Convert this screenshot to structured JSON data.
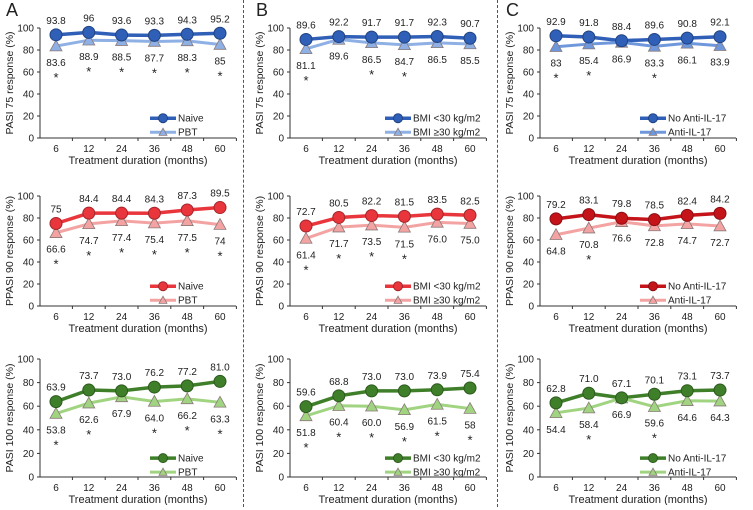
{
  "chart_data": [
    {
      "type": "line",
      "panel_letter": "A",
      "ylabel": "PASI 75 response (%)",
      "xlabel": "Treatment duration (months)",
      "categories": [
        "6",
        "12",
        "24",
        "36",
        "48",
        "60"
      ],
      "ylim": [
        0,
        100
      ],
      "yticks": [
        0,
        20,
        40,
        60,
        80,
        100
      ],
      "legend": "center-right",
      "series": [
        {
          "name": "Naive",
          "marker": "circle",
          "color": "#2f5fb7",
          "values": [
            93.8,
            96,
            93.6,
            93.3,
            94.3,
            95.2
          ],
          "labels": [
            "93.8",
            "96",
            "93.6",
            "93.3",
            "94.3",
            "95.2"
          ]
        },
        {
          "name": "PBT",
          "marker": "triangle",
          "color": "#8eb0e4",
          "values": [
            83.6,
            88.9,
            88.5,
            87.7,
            88.3,
            85
          ],
          "labels": [
            "83.6",
            "88.9",
            "88.5",
            "87.7",
            "88.3",
            "85"
          ]
        }
      ],
      "significant": [
        true,
        true,
        true,
        true,
        true,
        true
      ]
    },
    {
      "type": "line",
      "panel_letter": "B",
      "ylabel": "PASI 75 response (%)",
      "xlabel": "Treatment duration (months)",
      "categories": [
        "6",
        "12",
        "24",
        "36",
        "48",
        "60"
      ],
      "ylim": [
        0,
        100
      ],
      "yticks": [
        0,
        20,
        40,
        60,
        80,
        100
      ],
      "legend": "center-right",
      "series": [
        {
          "name": "BMI <30 kg/m2",
          "marker": "circle",
          "color": "#2f5fb7",
          "values": [
            89.6,
            92.2,
            91.7,
            91.7,
            92.3,
            90.7
          ],
          "labels": [
            "89.6",
            "92.2",
            "91.7",
            "91.7",
            "92.3",
            "90.7"
          ]
        },
        {
          "name": "BMI ≥30 kg/m2",
          "marker": "triangle",
          "color": "#8eb0e4",
          "values": [
            81.1,
            89.6,
            86.5,
            84.7,
            86.5,
            85.5
          ],
          "labels": [
            "81.1",
            "89.6",
            "86.5",
            "84.7",
            "86.5",
            "85.5"
          ]
        }
      ],
      "significant": [
        true,
        false,
        true,
        true,
        false,
        false
      ]
    },
    {
      "type": "line",
      "panel_letter": "C",
      "ylabel": "PASI 75 response (%)",
      "xlabel": "Treatment duration (months)",
      "categories": [
        "6",
        "12",
        "24",
        "36",
        "48",
        "60"
      ],
      "ylim": [
        0,
        100
      ],
      "yticks": [
        0,
        20,
        40,
        60,
        80,
        100
      ],
      "legend": "center-right",
      "series": [
        {
          "name": "No Anti-IL-17",
          "marker": "circle",
          "color": "#2f5fb7",
          "values": [
            92.9,
            91.8,
            88.4,
            89.6,
            90.8,
            92.1
          ],
          "labels": [
            "92.9",
            "91.8",
            "88.4",
            "89.6",
            "90.8",
            "92.1"
          ]
        },
        {
          "name": "Anti-IL-17",
          "marker": "triangle",
          "color": "#6f97dc",
          "values": [
            83,
            85.4,
            86.9,
            83.3,
            86.1,
            83.9
          ],
          "labels": [
            "83",
            "85.4",
            "86.9",
            "83.3",
            "86.1",
            "83.9"
          ]
        }
      ],
      "significant": [
        true,
        true,
        false,
        true,
        false,
        false
      ]
    },
    {
      "type": "line",
      "panel_letter": "",
      "ylabel": "PPASI 90 response (%)",
      "xlabel": "Treatment duration (months)",
      "categories": [
        "6",
        "12",
        "24",
        "36",
        "48",
        "60"
      ],
      "ylim": [
        0,
        100
      ],
      "yticks": [
        0,
        20,
        40,
        60,
        80,
        100
      ],
      "legend": "center-right",
      "series": [
        {
          "name": "Naive",
          "marker": "circle",
          "color": "#e8363c",
          "values": [
            75,
            84.4,
            84.4,
            84.3,
            87.3,
            89.5
          ],
          "labels": [
            "75",
            "84.4",
            "84.4",
            "84.3",
            "87.3",
            "89.5"
          ]
        },
        {
          "name": "PBT",
          "marker": "triangle",
          "color": "#f4a3a3",
          "values": [
            66.6,
            74.7,
            77.4,
            75.4,
            77.5,
            74
          ],
          "labels": [
            "66.6",
            "74.7",
            "77.4",
            "75.4",
            "77.5",
            "74"
          ]
        }
      ],
      "significant": [
        true,
        true,
        true,
        true,
        true,
        true
      ]
    },
    {
      "type": "line",
      "panel_letter": "",
      "ylabel": "PPASI 90 response (%)",
      "xlabel": "Treatment duration (months)",
      "categories": [
        "6",
        "12",
        "24",
        "36",
        "48",
        "60"
      ],
      "ylim": [
        0,
        100
      ],
      "yticks": [
        0,
        20,
        40,
        60,
        80,
        100
      ],
      "legend": "center-right",
      "series": [
        {
          "name": "BMI <30 kg/m2",
          "marker": "circle",
          "color": "#e8363c",
          "values": [
            72.7,
            80.5,
            82.2,
            81.5,
            83.5,
            82.5
          ],
          "labels": [
            "72.7",
            "80.5",
            "82.2",
            "81.5",
            "83.5",
            "82.5"
          ]
        },
        {
          "name": "BMI ≥30 kg/m2",
          "marker": "triangle",
          "color": "#f4a3a3",
          "values": [
            61.4,
            71.7,
            73.5,
            71.5,
            76.0,
            75.0
          ],
          "labels": [
            "61.4",
            "71.7",
            "73.5",
            "71.5",
            "76.0",
            "75.0"
          ]
        }
      ],
      "significant": [
        true,
        true,
        true,
        true,
        false,
        false
      ]
    },
    {
      "type": "line",
      "panel_letter": "",
      "ylabel": "PPASI 90 response (%)",
      "xlabel": "Treatment duration (months)",
      "categories": [
        "6",
        "12",
        "24",
        "36",
        "48",
        "60"
      ],
      "ylim": [
        0,
        100
      ],
      "yticks": [
        0,
        20,
        40,
        60,
        80,
        100
      ],
      "legend": "center-right",
      "series": [
        {
          "name": "No Anti-IL-17",
          "marker": "circle",
          "color": "#c4141a",
          "values": [
            79.2,
            83.1,
            79.8,
            78.5,
            82.4,
            84.2
          ],
          "labels": [
            "79.2",
            "83.1",
            "79.8",
            "78.5",
            "82.4",
            "84.2"
          ]
        },
        {
          "name": "Anti-IL-17",
          "marker": "triangle",
          "color": "#f4a3a3",
          "values": [
            64.8,
            70.8,
            76.6,
            72.8,
            74.7,
            72.7
          ],
          "labels": [
            "64.8",
            "70.8",
            "76.6",
            "72.8",
            "74.7",
            "72.7"
          ]
        }
      ],
      "significant": [
        false,
        true,
        false,
        false,
        false,
        false
      ]
    },
    {
      "type": "line",
      "panel_letter": "",
      "ylabel": "PASI 100 response (%)",
      "xlabel": "Treatment duration (months)",
      "categories": [
        "6",
        "12",
        "24",
        "36",
        "48",
        "60"
      ],
      "ylim": [
        0,
        100
      ],
      "yticks": [
        0,
        20,
        40,
        60,
        80,
        100
      ],
      "legend": "center-right",
      "series": [
        {
          "name": "Naive",
          "marker": "circle",
          "color": "#3f7f2a",
          "values": [
            63.9,
            73.7,
            73.0,
            76.2,
            77.2,
            81.0
          ],
          "labels": [
            "63.9",
            "73.7",
            "73.0",
            "76.2",
            "77.2",
            "81.0"
          ]
        },
        {
          "name": "PBT",
          "marker": "triangle",
          "color": "#a0d480",
          "values": [
            53.8,
            62.6,
            67.9,
            64.0,
            66.2,
            63.3
          ],
          "labels": [
            "53.8",
            "62.6",
            "67.9",
            "64.0",
            "66.2",
            "63.3"
          ]
        }
      ],
      "significant": [
        true,
        true,
        false,
        true,
        true,
        true
      ]
    },
    {
      "type": "line",
      "panel_letter": "",
      "ylabel": "PASI 100 response (%)",
      "xlabel": "Treatment duration (months)",
      "categories": [
        "6",
        "12",
        "24",
        "36",
        "48",
        "60"
      ],
      "ylim": [
        0,
        100
      ],
      "yticks": [
        0,
        20,
        40,
        60,
        80,
        100
      ],
      "legend": "center-right",
      "series": [
        {
          "name": "BMI <30 kg/m2",
          "marker": "circle",
          "color": "#3f7f2a",
          "values": [
            59.6,
            68.8,
            73.0,
            73.0,
            73.9,
            75.4
          ],
          "labels": [
            "59.6",
            "68.8",
            "73.0",
            "73.0",
            "73.9",
            "75.4"
          ]
        },
        {
          "name": "BMI ≥30 kg/m2",
          "marker": "triangle",
          "color": "#a0d480",
          "values": [
            51.8,
            60.4,
            60.0,
            56.9,
            61.5,
            58
          ],
          "labels": [
            "51.8",
            "60.4",
            "60.0",
            "56.9",
            "61.5",
            "58"
          ]
        }
      ],
      "significant": [
        true,
        true,
        true,
        true,
        true,
        true
      ]
    },
    {
      "type": "line",
      "panel_letter": "",
      "ylabel": "PASI 100 response (%)",
      "xlabel": "Treatment duration (months)",
      "categories": [
        "6",
        "12",
        "24",
        "36",
        "48",
        "60"
      ],
      "ylim": [
        0,
        100
      ],
      "yticks": [
        0,
        20,
        40,
        60,
        80,
        100
      ],
      "legend": "center-right",
      "series": [
        {
          "name": "No Anti-IL-17",
          "marker": "circle",
          "color": "#3f7f2a",
          "values": [
            62.8,
            71.0,
            67.1,
            70.1,
            73.1,
            73.7
          ],
          "labels": [
            "62.8",
            "71.0",
            "67.1",
            "70.1",
            "73.1",
            "73.7"
          ]
        },
        {
          "name": "Anti-IL-17",
          "marker": "triangle",
          "color": "#a0d480",
          "values": [
            54.4,
            58.4,
            66.9,
            59.6,
            64.6,
            64.3
          ],
          "labels": [
            "54.4",
            "58.4",
            "66.9",
            "59.6",
            "64.6",
            "64.3"
          ]
        }
      ],
      "significant": [
        false,
        true,
        false,
        true,
        false,
        false
      ]
    }
  ],
  "significance_marker": "*"
}
